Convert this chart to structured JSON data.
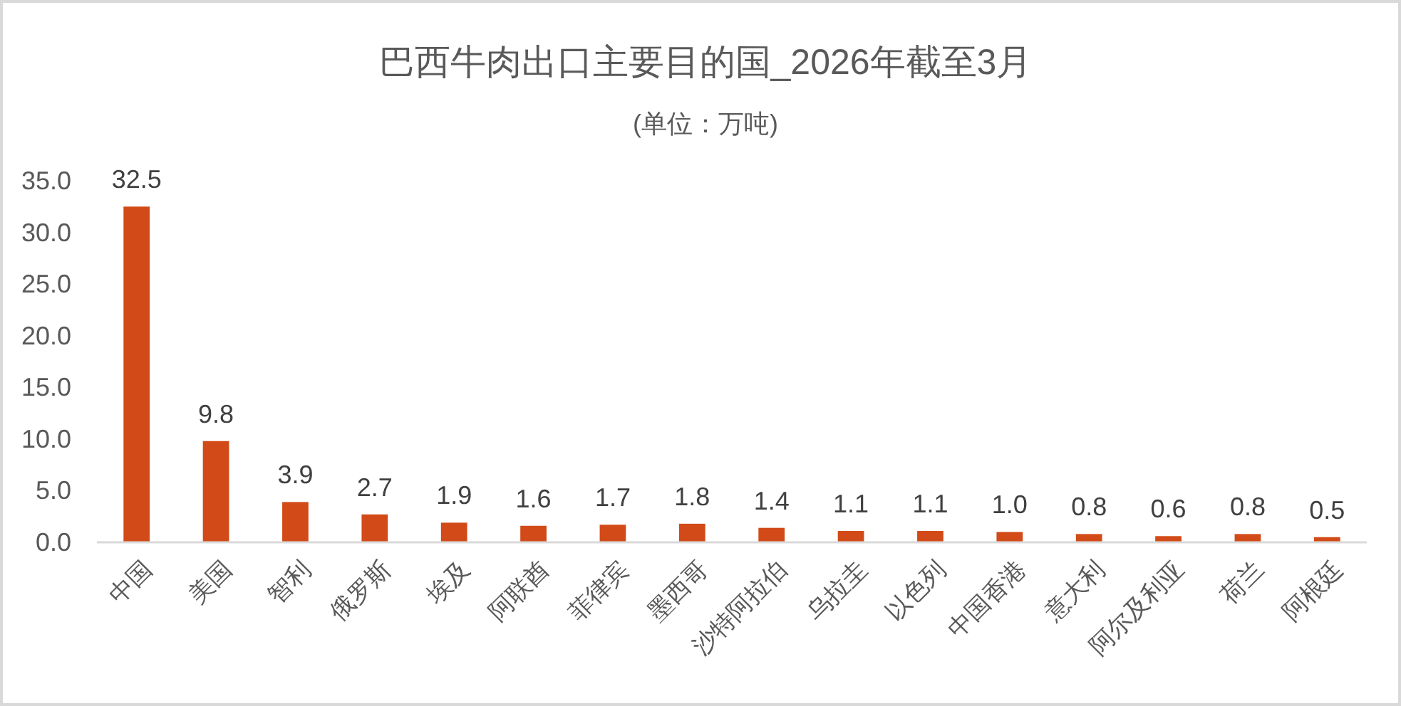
{
  "chart_data": {
    "type": "bar",
    "title": "巴西牛肉出口主要目的国_2026年截至3月",
    "subtitle": "(单位：万吨)",
    "categories": [
      "中国",
      "美国",
      "智利",
      "俄罗斯",
      "埃及",
      "阿联酋",
      "菲律宾",
      "墨西哥",
      "沙特阿拉伯",
      "乌拉圭",
      "以色列",
      "中国香港",
      "意大利",
      "阿尔及利亚",
      "荷兰",
      "阿根廷"
    ],
    "values": [
      32.5,
      9.8,
      3.9,
      2.7,
      1.9,
      1.6,
      1.7,
      1.8,
      1.4,
      1.1,
      1.1,
      1.0,
      0.8,
      0.6,
      0.8,
      0.5
    ],
    "value_labels": [
      "32.5",
      "9.8",
      "3.9",
      "2.7",
      "1.9",
      "1.6",
      "1.7",
      "1.8",
      "1.4",
      "1.1",
      "1.1",
      "1.0",
      "0.8",
      "0.6",
      "0.8",
      "0.5"
    ],
    "color": "#d24a17",
    "ylim": [
      0,
      35
    ],
    "yticks": [
      {
        "value": 0,
        "label": "0.0"
      },
      {
        "value": 5,
        "label": "5.0"
      },
      {
        "value": 10,
        "label": "10.0"
      },
      {
        "value": 15,
        "label": "15.0"
      },
      {
        "value": 20,
        "label": "20.0"
      },
      {
        "value": 25,
        "label": "25.0"
      },
      {
        "value": 30,
        "label": "30.0"
      },
      {
        "value": 35,
        "label": "35.0"
      }
    ]
  }
}
